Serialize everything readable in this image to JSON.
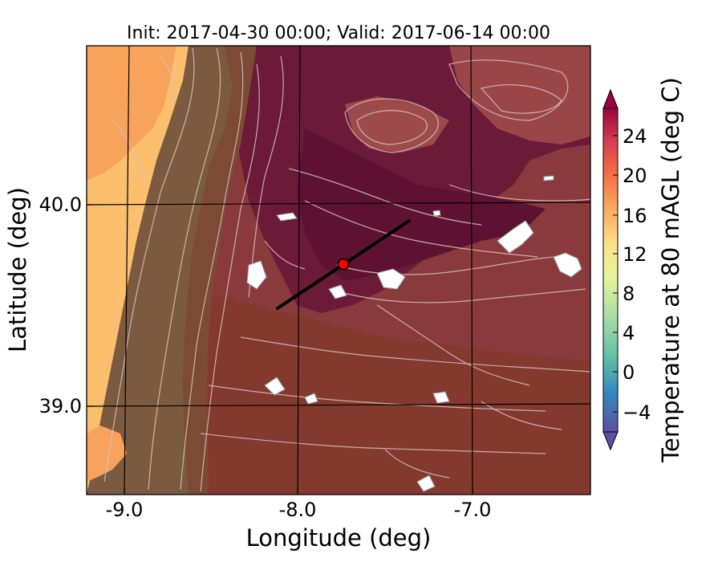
{
  "title": "Init: 2017-04-30 00:00; Valid: 2017-06-14 00:00",
  "xlabel": "Longitude (deg)",
  "ylabel": "Latitude (deg)",
  "x_ticks": [
    "-9.0",
    "-8.0",
    "-7.0"
  ],
  "y_ticks": [
    "40.0",
    "39.0"
  ],
  "colorbar": {
    "label": "Temperature at 80 mAGL (deg C)",
    "ticks": [
      "24",
      "20",
      "16",
      "12",
      "8",
      "4",
      "0",
      "−4"
    ],
    "range": [
      -6,
      28
    ],
    "extend": "both",
    "colormap": "Spectral_r"
  },
  "map": {
    "lon_range": [
      -9.25,
      -6.35
    ],
    "lat_range": [
      38.55,
      40.8
    ],
    "transect": {
      "start": {
        "lon": -8.12,
        "lat": 39.5
      },
      "end": {
        "lon": -7.37,
        "lat": 39.91
      },
      "color": "#000000"
    },
    "site_marker": {
      "lon": -7.74,
      "lat": 39.68,
      "color": "#ff0000"
    },
    "colors": {
      "ocean": "#f7a35c",
      "coast": "#fbbf6e",
      "lowland": "#7b5a40",
      "plateau": "#8a3a3c",
      "highland": "#6b1a38",
      "contour": "#d9c3c3",
      "gridline": "#000000"
    }
  }
}
